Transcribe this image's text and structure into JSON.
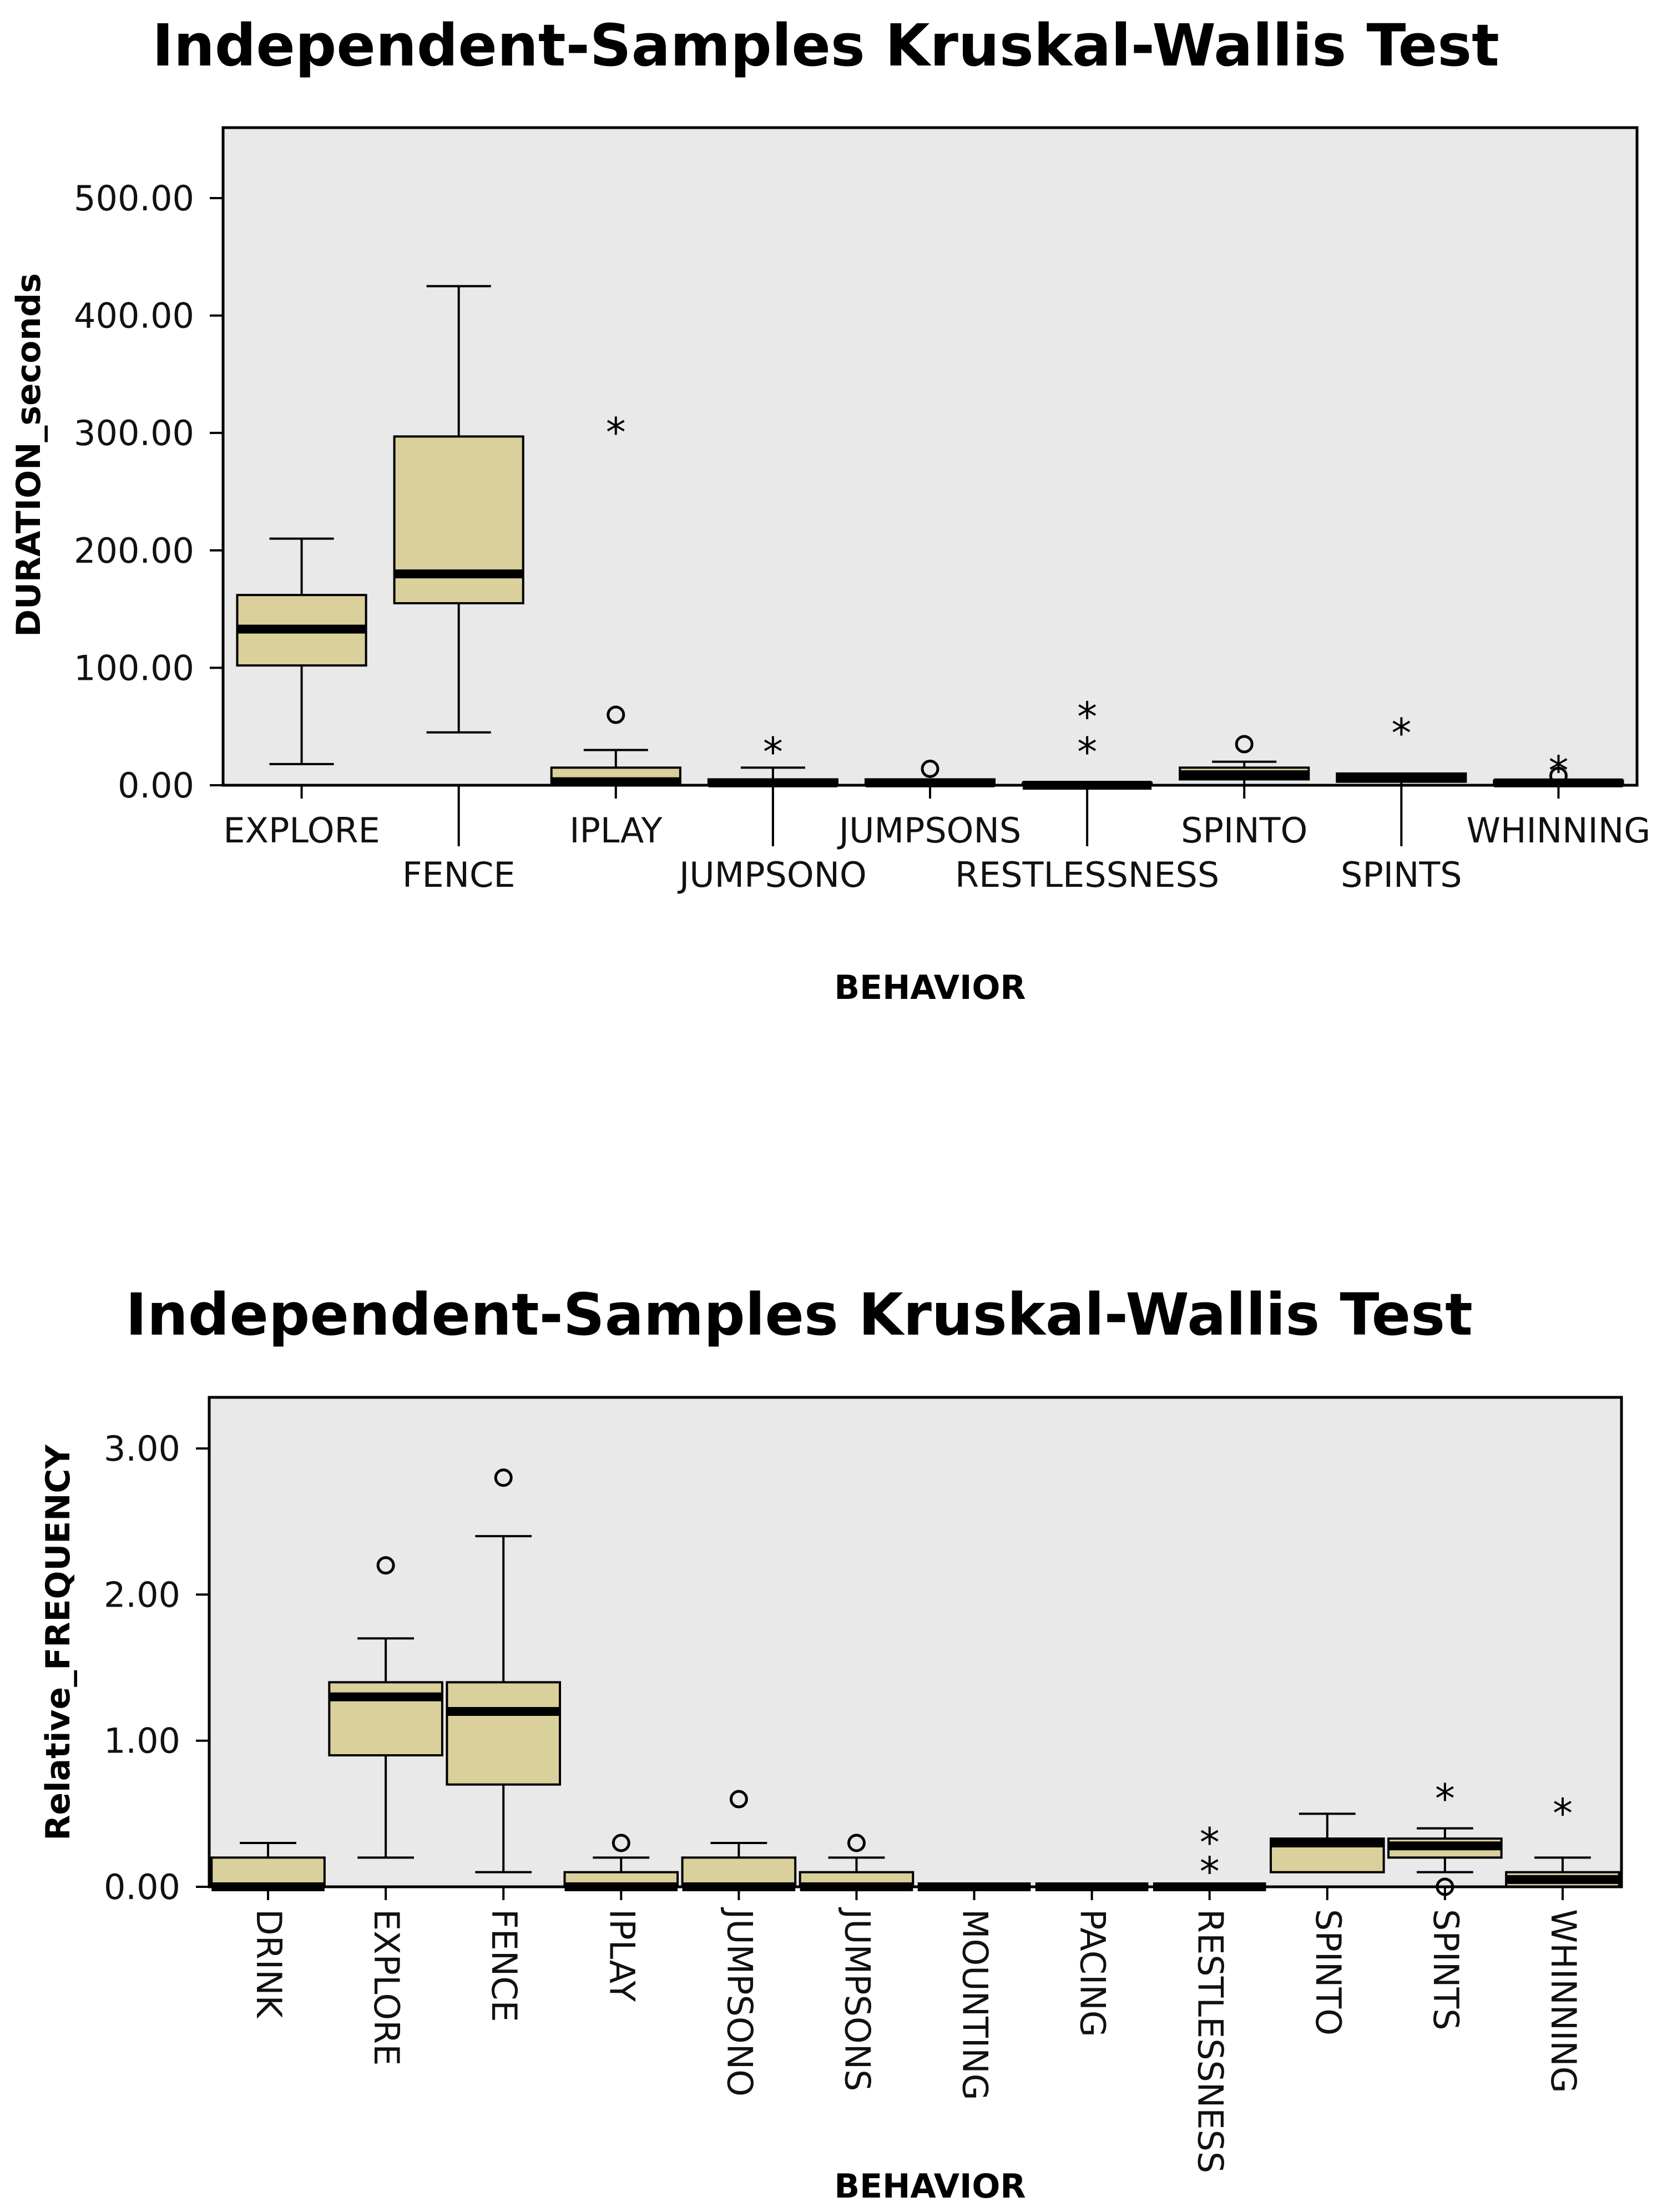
{
  "colors": {
    "plot_bg": "#e9e9e9",
    "box_fill": "#d9d09c",
    "line": "#000000"
  },
  "chart_data": [
    {
      "type": "box",
      "title": "Independent-Samples Kruskal-Wallis Test",
      "xlabel": "BEHAVIOR",
      "ylabel": "DURATION_seconds",
      "ylim": [
        0,
        560
      ],
      "yticks": [
        0,
        100,
        200,
        300,
        400,
        500
      ],
      "ytick_labels": [
        "0.00",
        "100.00",
        "200.00",
        "300.00",
        "400.00",
        "500.00"
      ],
      "label_layout": "staggered",
      "categories": [
        "EXPLORE",
        "FENCE",
        "IPLAY",
        "JUMPSONO",
        "JUMPSONS",
        "RESTLESSNESS",
        "SPINTO",
        "SPINTS",
        "WHINNING"
      ],
      "boxes": [
        {
          "whisker_low": 18,
          "q1": 102,
          "median": 133,
          "q3": 162,
          "whisker_high": 210,
          "outliers": []
        },
        {
          "whisker_low": 45,
          "q1": 155,
          "median": 180,
          "q3": 297,
          "whisker_high": 425,
          "outliers": []
        },
        {
          "whisker_low": 0,
          "q1": 0,
          "median": 3,
          "q3": 15,
          "whisker_high": 30,
          "outliers": [
            {
              "value": 60,
              "kind": "circle"
            },
            {
              "value": 300,
              "kind": "star"
            }
          ]
        },
        {
          "whisker_low": 0,
          "q1": 0,
          "median": 2,
          "q3": 5,
          "whisker_high": 15,
          "outliers": [
            {
              "value": 28,
              "kind": "star"
            }
          ]
        },
        {
          "whisker_low": 0,
          "q1": 0,
          "median": 2,
          "q3": 5,
          "whisker_high": 5,
          "outliers": [
            {
              "value": 14,
              "kind": "circle"
            }
          ]
        },
        {
          "whisker_low": 0,
          "q1": 0,
          "median": 0,
          "q3": 2,
          "whisker_high": 2,
          "outliers": [
            {
              "value": 28,
              "kind": "star"
            },
            {
              "value": 58,
              "kind": "star"
            }
          ]
        },
        {
          "whisker_low": 0,
          "q1": 5,
          "median": 9,
          "q3": 15,
          "whisker_high": 20,
          "outliers": [
            {
              "value": 35,
              "kind": "circle"
            }
          ]
        },
        {
          "whisker_low": 0,
          "q1": 3,
          "median": 7,
          "q3": 10,
          "whisker_high": 10,
          "outliers": [
            {
              "value": 44,
              "kind": "star"
            }
          ]
        },
        {
          "whisker_low": 0,
          "q1": 0,
          "median": 2,
          "q3": 4,
          "whisker_high": 4,
          "outliers": [
            {
              "value": 8,
              "kind": "circle"
            },
            {
              "value": 12,
              "kind": "star"
            }
          ]
        }
      ]
    },
    {
      "type": "box",
      "title": "Independent-Samples Kruskal-Wallis Test",
      "xlabel": "BEHAVIOR",
      "ylabel": "Relative_FREQUENCY",
      "ylim": [
        0,
        3.35
      ],
      "yticks": [
        0,
        1,
        2,
        3
      ],
      "ytick_labels": [
        "0.00",
        "1.00",
        "2.00",
        "3.00"
      ],
      "label_layout": "rotated",
      "categories": [
        "DRINK",
        "EXPLORE",
        "FENCE",
        "IPLAY",
        "JUMPSONO",
        "JUMPSONS",
        "MOUNTING",
        "PACING",
        "RESTLESSNESS",
        "SPINTO",
        "SPINTS",
        "WHINNING"
      ],
      "boxes": [
        {
          "whisker_low": 0,
          "q1": 0,
          "median": 0,
          "q3": 0.2,
          "whisker_high": 0.3,
          "outliers": []
        },
        {
          "whisker_low": 0.2,
          "q1": 0.9,
          "median": 1.3,
          "q3": 1.4,
          "whisker_high": 1.7,
          "outliers": [
            {
              "value": 2.2,
              "kind": "circle"
            }
          ]
        },
        {
          "whisker_low": 0.1,
          "q1": 0.7,
          "median": 1.2,
          "q3": 1.4,
          "whisker_high": 2.4,
          "outliers": [
            {
              "value": 2.8,
              "kind": "circle"
            }
          ]
        },
        {
          "whisker_low": 0,
          "q1": 0,
          "median": 0,
          "q3": 0.1,
          "whisker_high": 0.2,
          "outliers": [
            {
              "value": 0.3,
              "kind": "circle"
            }
          ]
        },
        {
          "whisker_low": 0,
          "q1": 0,
          "median": 0,
          "q3": 0.2,
          "whisker_high": 0.3,
          "outliers": [
            {
              "value": 0.6,
              "kind": "circle"
            }
          ]
        },
        {
          "whisker_low": 0,
          "q1": 0,
          "median": 0,
          "q3": 0.1,
          "whisker_high": 0.2,
          "outliers": [
            {
              "value": 0.3,
              "kind": "circle"
            }
          ]
        },
        {
          "whisker_low": 0,
          "q1": 0,
          "median": 0,
          "q3": 0,
          "whisker_high": 0,
          "outliers": []
        },
        {
          "whisker_low": 0,
          "q1": 0,
          "median": 0,
          "q3": 0,
          "whisker_high": 0,
          "outliers": []
        },
        {
          "whisker_low": 0,
          "q1": 0,
          "median": 0,
          "q3": 0,
          "whisker_high": 0,
          "outliers": [
            {
              "value": 0.1,
              "kind": "star"
            },
            {
              "value": 0.3,
              "kind": "star"
            }
          ]
        },
        {
          "whisker_low": 0.1,
          "q1": 0.1,
          "median": 0.3,
          "q3": 0.33,
          "whisker_high": 0.5,
          "outliers": []
        },
        {
          "whisker_low": 0.1,
          "q1": 0.2,
          "median": 0.28,
          "q3": 0.33,
          "whisker_high": 0.4,
          "outliers": [
            {
              "value": 0.0,
              "kind": "circle"
            },
            {
              "value": 0.6,
              "kind": "star"
            }
          ]
        },
        {
          "whisker_low": 0,
          "q1": 0,
          "median": 0.05,
          "q3": 0.1,
          "whisker_high": 0.2,
          "outliers": [
            {
              "value": 0.5,
              "kind": "star"
            }
          ]
        }
      ]
    }
  ]
}
